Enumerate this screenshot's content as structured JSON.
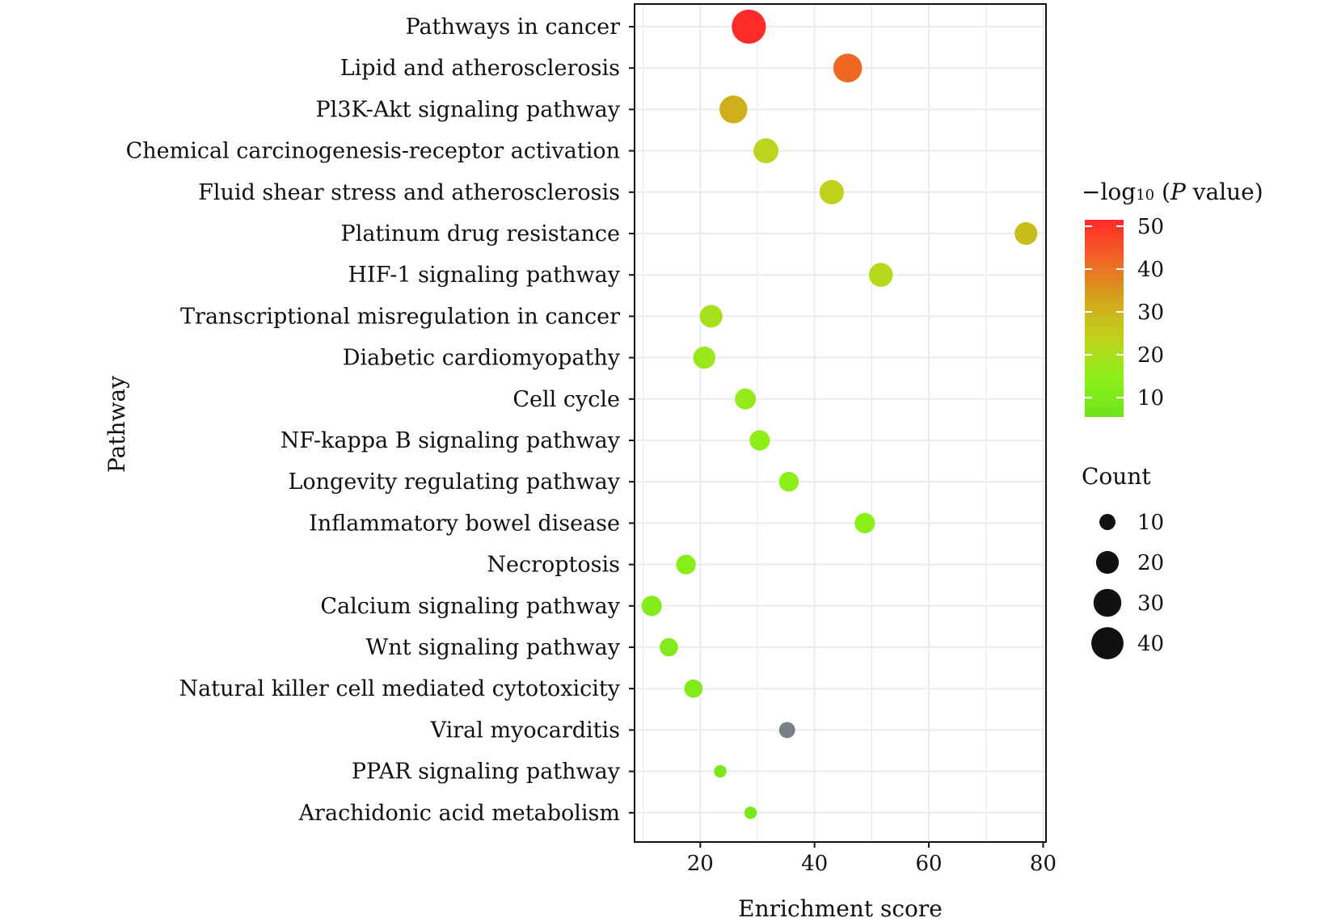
{
  "chart_data": {
    "type": "scatter",
    "xlabel": "Enrichment score",
    "ylabel": "Pathway",
    "xlim": [
      8.5,
      80.5
    ],
    "xticks": [
      20,
      40,
      60,
      80
    ],
    "grid": true,
    "categories": [
      "Pathways in cancer",
      "Lipid and atherosclerosis",
      "Pl3K-Akt signaling pathway",
      "Chemical carcinogenesis-receptor activation",
      "Fluid shear stress and atherosclerosis",
      "Platinum drug resistance",
      "HIF-1 signaling pathway",
      "Transcriptional misregulation in cancer",
      "Diabetic cardiomyopathy",
      "Cell cycle",
      "NF-kappa B signaling pathway",
      "Longevity regulating pathway",
      "Inflammatory bowel disease",
      "Necroptosis",
      "Calcium signaling pathway",
      "Wnt signaling pathway",
      "Natural killer cell mediated cytotoxicity",
      "Viral myocarditis",
      "PPAR signaling pathway",
      "Arachidonic acid metabolism"
    ],
    "points": [
      {
        "pathway": "Pathways in cancer",
        "enrichment": 28.5,
        "neglog10p": 52,
        "count": 45
      },
      {
        "pathway": "Lipid and atherosclerosis",
        "enrichment": 45.8,
        "neglog10p": 42,
        "count": 32
      },
      {
        "pathway": "Pl3K-Akt signaling pathway",
        "enrichment": 25.8,
        "neglog10p": 31,
        "count": 30
      },
      {
        "pathway": "Chemical carcinogenesis-receptor activation",
        "enrichment": 31.5,
        "neglog10p": 23,
        "count": 24
      },
      {
        "pathway": "Fluid shear stress and atherosclerosis",
        "enrichment": 43.0,
        "neglog10p": 24,
        "count": 23
      },
      {
        "pathway": "Platinum drug resistance",
        "enrichment": 77.0,
        "neglog10p": 28,
        "count": 20
      },
      {
        "pathway": "HIF-1 signaling pathway",
        "enrichment": 51.6,
        "neglog10p": 22,
        "count": 22
      },
      {
        "pathway": "Transcriptional misregulation in cancer",
        "enrichment": 21.9,
        "neglog10p": 19,
        "count": 20
      },
      {
        "pathway": "Diabetic cardiomyopathy",
        "enrichment": 20.7,
        "neglog10p": 17,
        "count": 19
      },
      {
        "pathway": "Cell cycle",
        "enrichment": 27.9,
        "neglog10p": 16,
        "count": 17
      },
      {
        "pathway": "NF-kappa B signaling pathway",
        "enrichment": 30.4,
        "neglog10p": 15,
        "count": 16
      },
      {
        "pathway": "Longevity regulating pathway",
        "enrichment": 35.5,
        "neglog10p": 14,
        "count": 15
      },
      {
        "pathway": "Inflammatory bowel disease",
        "enrichment": 48.8,
        "neglog10p": 14,
        "count": 16
      },
      {
        "pathway": "Necroptosis",
        "enrichment": 17.5,
        "neglog10p": 13,
        "count": 15
      },
      {
        "pathway": "Calcium signaling pathway",
        "enrichment": 11.5,
        "neglog10p": 12,
        "count": 16
      },
      {
        "pathway": "Wnt signaling pathway",
        "enrichment": 14.5,
        "neglog10p": 11,
        "count": 13
      },
      {
        "pathway": "Natural killer cell mediated cytotoxicity",
        "enrichment": 18.8,
        "neglog10p": 11,
        "count": 13
      },
      {
        "pathway": "Viral myocarditis",
        "enrichment": 35.2,
        "neglog10p": null,
        "count": 10
      },
      {
        "pathway": "PPAR signaling pathway",
        "enrichment": 23.5,
        "neglog10p": 9,
        "count": 6
      },
      {
        "pathway": "Arachidonic acid metabolism",
        "enrichment": 28.8,
        "neglog10p": 9,
        "count": 6
      }
    ],
    "color_legend": {
      "title_prefix": "−log",
      "title_subscript": "10",
      "title_open": " (",
      "title_italic": "P",
      "title_suffix": " value)",
      "ticks": [
        50,
        40,
        30,
        20,
        10
      ],
      "range": [
        5,
        52
      ],
      "colors": [
        "#6ee21c",
        "#8cf01a",
        "#c0d21c",
        "#d4a41c",
        "#f06424",
        "#ff2a2a"
      ]
    },
    "size_legend": {
      "title": "Count",
      "values": [
        10,
        20,
        30,
        40
      ]
    },
    "na_color": "#7a7f87"
  }
}
